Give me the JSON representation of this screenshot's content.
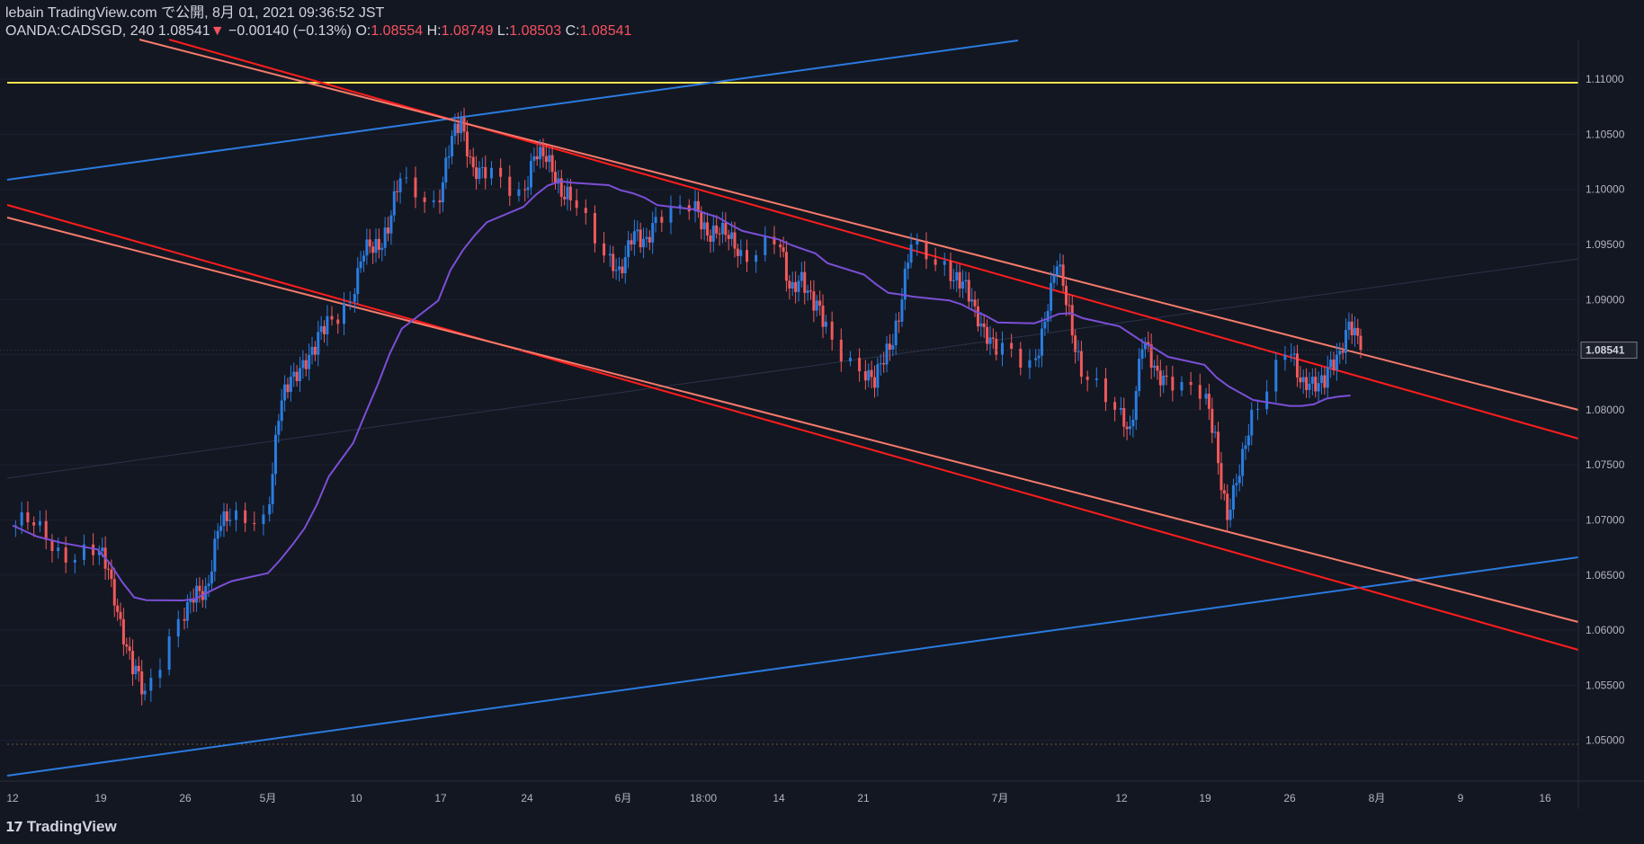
{
  "header": {
    "line1": "lebain TradingView.com で公開, 8月 01, 2021 09:36:52 JST",
    "symbol": "OANDA:CADSGD, 240",
    "last": "1.08541",
    "change_arrow": "▼",
    "change": "−0.00140 (−0.13%)",
    "o_label": "O:",
    "o_value": "1.08554",
    "h_label": "H:",
    "h_value": "1.08749",
    "l_label": "L:",
    "l_value": "1.08503",
    "c_label": "C:",
    "c_value": "1.08541"
  },
  "price_tag": "1.08541",
  "logo": {
    "text": "TradingView"
  },
  "colors": {
    "background": "#131722",
    "up": "#2a7de1",
    "down": "#f0595b",
    "ma": "#7b4fd6",
    "channel_red": "#ff1d1d",
    "channel_salmon": "#f77b6c",
    "trend_blue": "#2b7be0",
    "resistance_yellow": "#ffe54f",
    "axis_text": "#b2b5be"
  },
  "chart_data": {
    "type": "candlestick",
    "symbol": "OANDA:CADSGD",
    "timeframe": "240",
    "ylim": [
      1.0463,
      1.1136
    ],
    "y_ticks": [
      "1.11000",
      "1.10500",
      "1.10000",
      "1.09500",
      "1.09000",
      "1.08500",
      "1.08000",
      "1.07500",
      "1.07000",
      "1.06500",
      "1.06000",
      "1.05500",
      "1.05000"
    ],
    "x_ticks": [
      "12",
      "19",
      "26",
      "5月",
      "10",
      "17",
      "24",
      "6月",
      "18:00",
      "14",
      "21",
      "7月",
      "12",
      "19",
      "26",
      "8月",
      "9",
      "16"
    ],
    "last_price": 1.08541,
    "close_series": [
      {
        "date": "04-12",
        "close": 1.0695
      },
      {
        "date": "04-14",
        "close": 1.0675
      },
      {
        "date": "04-16",
        "close": 1.0668
      },
      {
        "date": "04-19",
        "close": 1.0655
      },
      {
        "date": "04-20",
        "close": 1.061
      },
      {
        "date": "04-21",
        "close": 1.056
      },
      {
        "date": "04-22",
        "close": 1.0545
      },
      {
        "date": "04-23",
        "close": 1.061
      },
      {
        "date": "04-26",
        "close": 1.0625
      },
      {
        "date": "04-27",
        "close": 1.064
      },
      {
        "date": "04-28",
        "close": 1.069
      },
      {
        "date": "04-29",
        "close": 1.07
      },
      {
        "date": "04-30",
        "close": 1.0705
      },
      {
        "date": "05-03",
        "close": 1.079
      },
      {
        "date": "05-04",
        "close": 1.083
      },
      {
        "date": "05-05",
        "close": 1.0845
      },
      {
        "date": "05-06",
        "close": 1.085
      },
      {
        "date": "05-07",
        "close": 1.0885
      },
      {
        "date": "05-08",
        "close": 1.0898
      },
      {
        "date": "05-10",
        "close": 1.094
      },
      {
        "date": "05-11",
        "close": 1.0955
      },
      {
        "date": "05-12",
        "close": 1.096
      },
      {
        "date": "05-13",
        "close": 1.101
      },
      {
        "date": "05-14",
        "close": 1.099
      },
      {
        "date": "05-17",
        "close": 1.103
      },
      {
        "date": "05-18",
        "close": 1.1065
      },
      {
        "date": "05-19",
        "close": 1.102
      },
      {
        "date": "05-20",
        "close": 1.101
      },
      {
        "date": "05-21",
        "close": 1.1
      },
      {
        "date": "05-24",
        "close": 1.103
      },
      {
        "date": "05-25",
        "close": 1.1025
      },
      {
        "date": "05-26",
        "close": 1.101
      },
      {
        "date": "05-27",
        "close": 1.099
      },
      {
        "date": "05-28",
        "close": 1.094
      },
      {
        "date": "05-31",
        "close": 1.093
      },
      {
        "date": "06-01",
        "close": 1.095
      },
      {
        "date": "06-02",
        "close": 1.0955
      },
      {
        "date": "06-03",
        "close": 1.0975
      },
      {
        "date": "06-04",
        "close": 1.098
      },
      {
        "date": "06-07",
        "close": 1.097
      },
      {
        "date": "06-08",
        "close": 1.096
      },
      {
        "date": "06-09",
        "close": 1.0955
      },
      {
        "date": "06-10",
        "close": 1.0945
      },
      {
        "date": "06-11",
        "close": 1.095
      },
      {
        "date": "06-14",
        "close": 1.091
      },
      {
        "date": "06-15",
        "close": 1.0925
      },
      {
        "date": "06-16",
        "close": 1.089
      },
      {
        "date": "06-17",
        "close": 1.088
      },
      {
        "date": "06-18",
        "close": 1.0835
      },
      {
        "date": "06-21",
        "close": 1.082
      },
      {
        "date": "06-22",
        "close": 1.086
      },
      {
        "date": "06-23",
        "close": 1.088
      },
      {
        "date": "06-24",
        "close": 1.095
      },
      {
        "date": "06-25",
        "close": 1.0935
      },
      {
        "date": "06-28",
        "close": 1.091
      },
      {
        "date": "06-29",
        "close": 1.09
      },
      {
        "date": "06-30",
        "close": 1.0875
      },
      {
        "date": "07-01",
        "close": 1.085
      },
      {
        "date": "07-02",
        "close": 1.0845
      },
      {
        "date": "07-05",
        "close": 1.088
      },
      {
        "date": "07-06",
        "close": 1.093
      },
      {
        "date": "07-07",
        "close": 1.0895
      },
      {
        "date": "07-08",
        "close": 1.083
      },
      {
        "date": "07-09",
        "close": 1.08
      },
      {
        "date": "07-12",
        "close": 1.0785
      },
      {
        "date": "07-13",
        "close": 1.0855
      },
      {
        "date": "07-14",
        "close": 1.084
      },
      {
        "date": "07-15",
        "close": 1.083
      },
      {
        "date": "07-16",
        "close": 1.081
      },
      {
        "date": "07-19",
        "close": 1.078
      },
      {
        "date": "07-20",
        "close": 1.07
      },
      {
        "date": "07-21",
        "close": 1.074
      },
      {
        "date": "07-22",
        "close": 1.08
      },
      {
        "date": "07-23",
        "close": 1.085
      },
      {
        "date": "07-26",
        "close": 1.0825
      },
      {
        "date": "07-27",
        "close": 1.083
      },
      {
        "date": "07-28",
        "close": 1.082
      },
      {
        "date": "07-29",
        "close": 1.085
      },
      {
        "date": "07-30",
        "close": 1.088
      },
      {
        "date": "07-31",
        "close": 1.0854
      }
    ]
  }
}
